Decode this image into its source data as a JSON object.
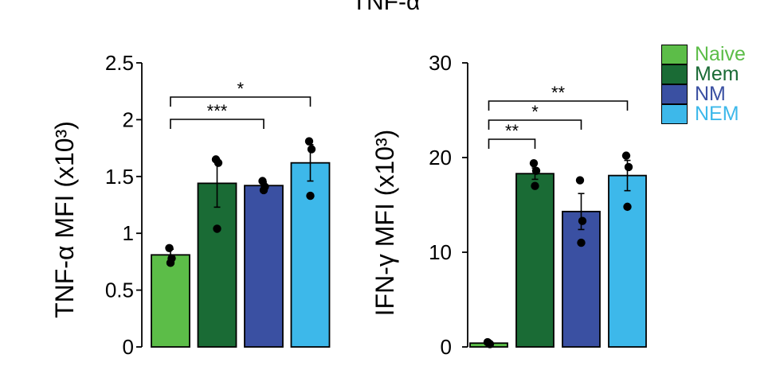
{
  "figure": {
    "title": "TNF-α"
  },
  "legend": [
    {
      "label": "Naive",
      "color": "#5cbd48"
    },
    {
      "label": "Mem",
      "color": "#1a6b35"
    },
    {
      "label": "NM",
      "color": "#3a50a2"
    },
    {
      "label": "NEM",
      "color": "#3db8ea"
    }
  ],
  "chart_data": [
    {
      "type": "bar",
      "ylabel": "TNF-α MFI (x10³)",
      "ylim": [
        0,
        2.5
      ],
      "yticks": [
        "0",
        "0.5",
        "1",
        "1.5",
        "2",
        "2.5"
      ],
      "categories": [
        "Naive",
        "Mem",
        "NM",
        "NEM"
      ],
      "values": [
        0.81,
        1.44,
        1.42,
        1.62
      ],
      "errors": [
        0.05,
        0.21,
        0.03,
        0.16
      ],
      "points": [
        [
          0.87,
          0.78,
          0.74
        ],
        [
          1.65,
          1.62,
          1.04
        ],
        [
          1.46,
          1.41,
          1.38
        ],
        [
          1.81,
          1.74,
          1.33
        ]
      ],
      "significance": [
        {
          "from": 0,
          "to": 2,
          "label": "***"
        },
        {
          "from": 0,
          "to": 3,
          "label": "*"
        }
      ]
    },
    {
      "type": "bar",
      "ylabel": "IFN-γ MFI (x10³)",
      "ylim": [
        0,
        30
      ],
      "yticks": [
        "0",
        "10",
        "20",
        "30"
      ],
      "categories": [
        "Naive",
        "Mem",
        "NM",
        "NEM"
      ],
      "values": [
        0.4,
        18.3,
        14.3,
        18.1
      ],
      "errors": [
        0.1,
        0.6,
        1.9,
        1.6
      ],
      "points": [
        [
          0.5,
          0.3,
          0.4
        ],
        [
          19.4,
          18.6,
          17.0
        ],
        [
          17.6,
          13.3,
          11.0
        ],
        [
          20.2,
          19.0,
          14.8
        ]
      ],
      "significance": [
        {
          "from": 0,
          "to": 1,
          "label": "**"
        },
        {
          "from": 0,
          "to": 2,
          "label": "*"
        },
        {
          "from": 0,
          "to": 3,
          "label": "**"
        }
      ]
    }
  ]
}
